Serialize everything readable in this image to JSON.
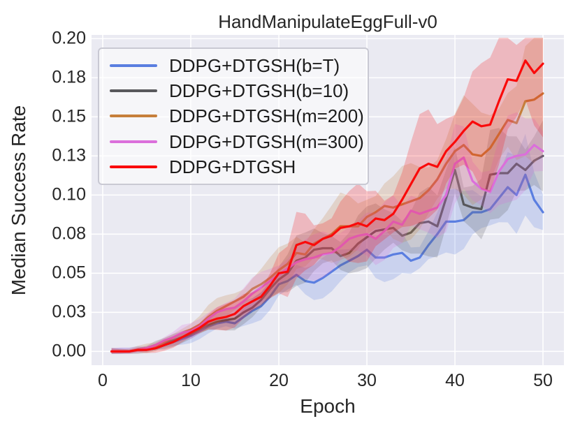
{
  "title": "HandManipulateEggFull-v0",
  "xlabel": "Epoch",
  "ylabel": "Median Success Rate",
  "plot": {
    "background_color": "#EAEAF2",
    "gridline_color": "#FFFFFF",
    "text_color": "#262626",
    "figure_background": "#FFFFFF"
  },
  "chart_data": {
    "type": "line",
    "title": "HandManipulateEggFull-v0",
    "xlabel": "Epoch",
    "ylabel": "Median Success Rate",
    "xlim": [
      -1.27,
      52.38
    ],
    "ylim": [
      -0.0088,
      0.2024
    ],
    "grid": true,
    "legend_position": "upper left",
    "x_ticks": [
      0,
      10,
      20,
      30,
      40,
      50
    ],
    "x_tick_labels": [
      "0",
      "10",
      "20",
      "30",
      "40",
      "50"
    ],
    "y_ticks": [
      0,
      0.025,
      0.05,
      0.075,
      0.1,
      0.125,
      0.15,
      0.175,
      0.2
    ],
    "y_tick_labels": [
      "0.00",
      "0.03",
      "0.05",
      "0.08",
      "0.10",
      "0.13",
      "0.15",
      "0.18",
      "0.20"
    ],
    "epochs": [
      1,
      2,
      3,
      4,
      5,
      6,
      7,
      8,
      9,
      10,
      11,
      12,
      13,
      14,
      15,
      16,
      17,
      18,
      19,
      20,
      21,
      22,
      23,
      24,
      25,
      26,
      27,
      28,
      29,
      30,
      31,
      32,
      33,
      34,
      35,
      36,
      37,
      38,
      39,
      40,
      41,
      42,
      43,
      44,
      45,
      46,
      47,
      48,
      49,
      50
    ],
    "series": [
      {
        "name": "DDPG+DTGSH(b=T)",
        "color": "#5A7EE0",
        "band_frac": 0.16,
        "values": [
          0.0,
          0.0,
          0.0,
          0.001,
          0.001,
          0.002,
          0.004,
          0.006,
          0.008,
          0.01,
          0.013,
          0.016,
          0.018,
          0.019,
          0.018,
          0.022,
          0.026,
          0.029,
          0.035,
          0.043,
          0.045,
          0.049,
          0.045,
          0.044,
          0.047,
          0.051,
          0.055,
          0.058,
          0.061,
          0.065,
          0.06,
          0.06,
          0.062,
          0.063,
          0.058,
          0.06,
          0.068,
          0.075,
          0.083,
          0.083,
          0.084,
          0.089,
          0.089,
          0.091,
          0.098,
          0.105,
          0.1,
          0.113,
          0.097,
          0.089
        ]
      },
      {
        "name": "DDPG+DTGSH(b=10)",
        "color": "#58585C",
        "band_frac": 0.17,
        "values": [
          0.0,
          0.0,
          0.0,
          0.001,
          0.002,
          0.004,
          0.005,
          0.007,
          0.009,
          0.011,
          0.014,
          0.017,
          0.019,
          0.02,
          0.021,
          0.025,
          0.028,
          0.033,
          0.04,
          0.046,
          0.05,
          0.058,
          0.06,
          0.065,
          0.066,
          0.066,
          0.061,
          0.063,
          0.069,
          0.073,
          0.077,
          0.078,
          0.079,
          0.074,
          0.076,
          0.082,
          0.083,
          0.08,
          0.098,
          0.116,
          0.094,
          0.092,
          0.091,
          0.113,
          0.114,
          0.114,
          0.12,
          0.116,
          0.122,
          0.125
        ]
      },
      {
        "name": "DDPG+DTGSH(m=200)",
        "color": "#C67F3B",
        "band_frac": 0.17,
        "values": [
          0.0,
          0.0,
          0.0,
          0.001,
          0.002,
          0.003,
          0.006,
          0.009,
          0.012,
          0.014,
          0.017,
          0.022,
          0.026,
          0.029,
          0.032,
          0.035,
          0.04,
          0.043,
          0.047,
          0.052,
          0.056,
          0.063,
          0.062,
          0.069,
          0.072,
          0.075,
          0.08,
          0.08,
          0.08,
          0.086,
          0.089,
          0.093,
          0.092,
          0.094,
          0.096,
          0.098,
          0.103,
          0.11,
          0.12,
          0.128,
          0.132,
          0.126,
          0.125,
          0.13,
          0.139,
          0.148,
          0.146,
          0.16,
          0.161,
          0.165
        ]
      },
      {
        "name": "DDPG+DTGSH(m=300)",
        "color": "#DB6FDB",
        "band_frac": 0.15,
        "values": [
          0.0,
          0.0,
          0.0,
          0.001,
          0.002,
          0.004,
          0.007,
          0.009,
          0.012,
          0.013,
          0.016,
          0.021,
          0.025,
          0.027,
          0.028,
          0.032,
          0.037,
          0.041,
          0.045,
          0.049,
          0.053,
          0.057,
          0.059,
          0.06,
          0.062,
          0.063,
          0.067,
          0.072,
          0.074,
          0.075,
          0.072,
          0.077,
          0.083,
          0.081,
          0.09,
          0.088,
          0.09,
          0.092,
          0.1,
          0.12,
          0.124,
          0.109,
          0.104,
          0.102,
          0.115,
          0.123,
          0.125,
          0.126,
          0.132,
          0.128
        ]
      },
      {
        "name": "DDPG+DTGSH",
        "color": "#FA0A0A",
        "band_frac": 0.2,
        "values": [
          0.0,
          0.0,
          0.0,
          0.001,
          0.001,
          0.002,
          0.004,
          0.006,
          0.009,
          0.012,
          0.015,
          0.019,
          0.021,
          0.022,
          0.024,
          0.029,
          0.032,
          0.035,
          0.042,
          0.05,
          0.051,
          0.068,
          0.07,
          0.068,
          0.072,
          0.074,
          0.079,
          0.08,
          0.082,
          0.08,
          0.085,
          0.084,
          0.088,
          0.097,
          0.107,
          0.117,
          0.12,
          0.118,
          0.128,
          0.134,
          0.141,
          0.147,
          0.144,
          0.145,
          0.16,
          0.174,
          0.173,
          0.186,
          0.178,
          0.184
        ]
      }
    ]
  }
}
